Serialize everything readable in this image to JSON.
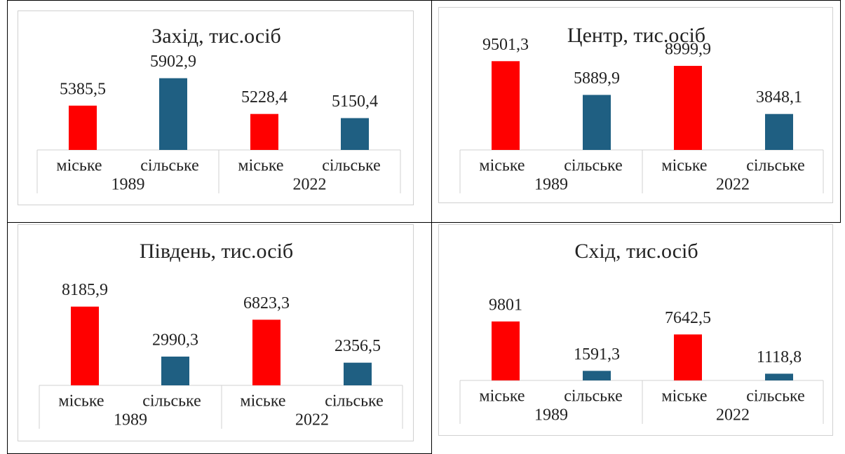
{
  "chart_data": [
    {
      "type": "bar",
      "title": "Захід, тис.осіб",
      "categories": [
        "міське",
        "сільське",
        "міське",
        "сільське"
      ],
      "groups": [
        "1989",
        "2022"
      ],
      "values": [
        5385.5,
        5902.9,
        5228.4,
        5150.4
      ],
      "value_labels": [
        "5385,5",
        "5902,9",
        "5228,4",
        "5150,4"
      ],
      "colors": [
        "#ff0000",
        "#1f5f82",
        "#ff0000",
        "#1f5f82"
      ],
      "ylim": [
        4550,
        6400
      ]
    },
    {
      "type": "bar",
      "title": "Центр, тис.осіб",
      "categories": [
        "міське",
        "сільське",
        "міське",
        "сільське"
      ],
      "groups": [
        "1989",
        "2022"
      ],
      "values": [
        9501.3,
        5889.9,
        8999.9,
        3848.1
      ],
      "value_labels": [
        "9501,3",
        "5889,9",
        "8999,9",
        "3848,1"
      ],
      "colors": [
        "#ff0000",
        "#1f5f82",
        "#ff0000",
        "#1f5f82"
      ],
      "ylim": [
        0,
        10500
      ]
    },
    {
      "type": "bar",
      "title": "Південь, тис.осіб",
      "categories": [
        "міське",
        "сільське",
        "міське",
        "сільське"
      ],
      "groups": [
        "1989",
        "2022"
      ],
      "values": [
        8185.9,
        2990.3,
        6823.3,
        2356.5
      ],
      "value_labels": [
        "8185,9",
        "2990,3",
        "6823,3",
        "2356,5"
      ],
      "colors": [
        "#ff0000",
        "#1f5f82",
        "#ff0000",
        "#1f5f82"
      ],
      "ylim": [
        0,
        10200
      ]
    },
    {
      "type": "bar",
      "title": "Схід, тис.осіб",
      "categories": [
        "міське",
        "сільське",
        "міське",
        "сільське"
      ],
      "groups": [
        "1989",
        "2022"
      ],
      "values": [
        9801,
        1591.3,
        7642.5,
        1118.8
      ],
      "value_labels": [
        "9801",
        "1591,3",
        "7642,5",
        "1118,8"
      ],
      "colors": [
        "#ff0000",
        "#1f5f82",
        "#ff0000",
        "#1f5f82"
      ],
      "ylim": [
        0,
        16300
      ]
    }
  ]
}
